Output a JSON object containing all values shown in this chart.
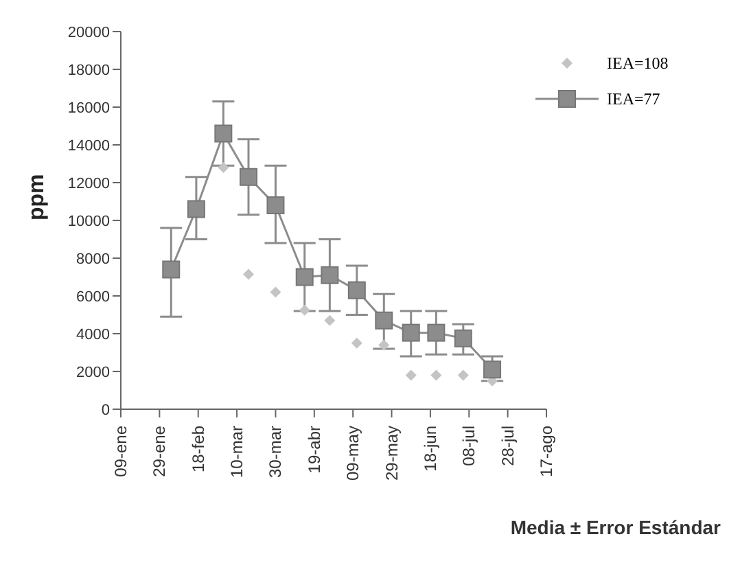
{
  "chart_data": {
    "type": "line",
    "ylabel": "ppm",
    "annotations": [
      "Media ± Error Estándar"
    ],
    "xlim": [
      "--01-09",
      "--08-17"
    ],
    "xticks": [
      {
        "value": "--01-09",
        "label": "09-ene"
      },
      {
        "value": "--01-29",
        "label": "29-ene"
      },
      {
        "value": "--02-18",
        "label": "18-feb"
      },
      {
        "value": "--03-10",
        "label": "10-mar"
      },
      {
        "value": "--03-30",
        "label": "30-mar"
      },
      {
        "value": "--04-19",
        "label": "19-abr"
      },
      {
        "value": "--05-09",
        "label": "09-may"
      },
      {
        "value": "--05-29",
        "label": "29-may"
      },
      {
        "value": "--06-18",
        "label": "18-jun"
      },
      {
        "value": "--07-08",
        "label": "08-jul"
      },
      {
        "value": "--07-28",
        "label": "28-jul"
      },
      {
        "value": "--08-17",
        "label": "17-ago"
      }
    ],
    "ylim": [
      0,
      20000
    ],
    "yticks": [
      0,
      2000,
      4000,
      6000,
      8000,
      10000,
      12000,
      14000,
      16000,
      18000,
      20000
    ],
    "grid": false,
    "legend": "top right",
    "series": [
      {
        "name": "IEA=108",
        "type": "scatter",
        "marker": "diamond",
        "color": "#c4c4c4",
        "x": [
          "--03-03",
          "--03-16",
          "--03-30",
          "--04-14",
          "--04-27",
          "--05-11",
          "--05-25",
          "--06-08",
          "--06-21",
          "--07-05",
          "--07-20"
        ],
        "values": [
          12800,
          7150,
          6200,
          5250,
          4700,
          3500,
          3400,
          1800,
          1800,
          1800,
          1500
        ]
      },
      {
        "name": "IEA=77",
        "marker": "square",
        "color": "#8c8c8c",
        "x": [
          "--02-04",
          "--02-17",
          "--03-03",
          "--03-16",
          "--03-30",
          "--04-14",
          "--04-27",
          "--05-11",
          "--05-25",
          "--06-08",
          "--06-21",
          "--07-05",
          "--07-20"
        ],
        "values": [
          7400,
          10600,
          14600,
          12300,
          10800,
          7000,
          7100,
          6300,
          4700,
          4050,
          4050,
          3750,
          2100
        ],
        "errors": [
          [
            4900,
            9600
          ],
          [
            9000,
            12300
          ],
          [
            12900,
            16300
          ],
          [
            10300,
            14300
          ],
          [
            8800,
            12900
          ],
          [
            5200,
            8800
          ],
          [
            5200,
            9000
          ],
          [
            5000,
            7600
          ],
          [
            3200,
            6100
          ],
          [
            2800,
            5200
          ],
          [
            2900,
            5200
          ],
          [
            2900,
            4500
          ],
          [
            1500,
            2800
          ]
        ]
      }
    ]
  }
}
